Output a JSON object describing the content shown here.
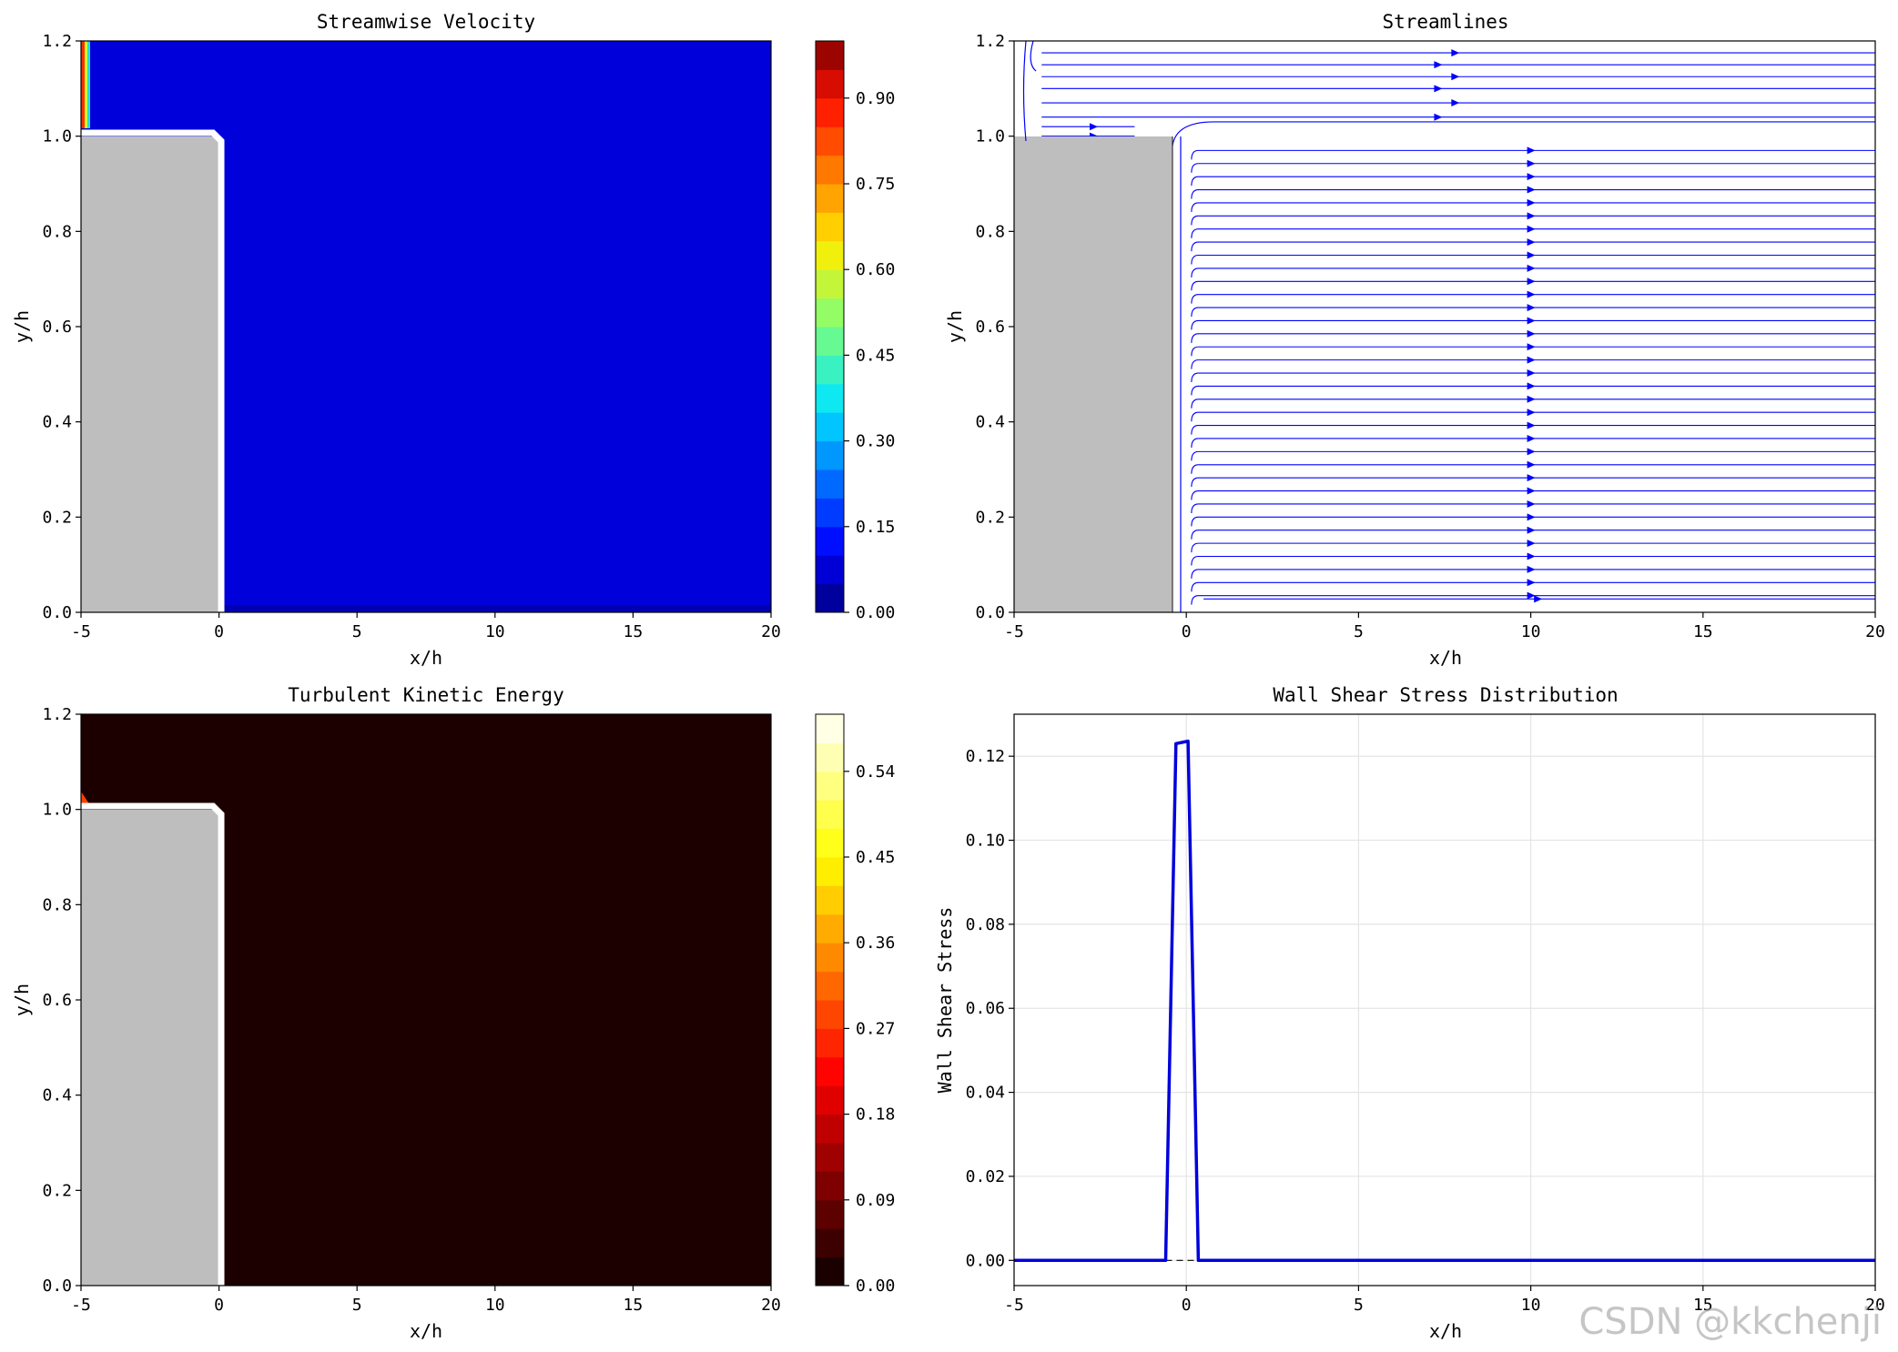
{
  "watermark": "CSDN @kkchenji",
  "chart_data": [
    {
      "type": "heatmap",
      "title": "Streamwise Velocity",
      "xlabel": "x/h",
      "ylabel": "y/h",
      "xlim": [
        -5,
        20
      ],
      "ylim": [
        0,
        1.2
      ],
      "xticks": [
        "-5",
        "0",
        "5",
        "10",
        "15",
        "20"
      ],
      "yticks": [
        "0.0",
        "0.2",
        "0.4",
        "0.6",
        "0.8",
        "1.0",
        "1.2"
      ],
      "colormap": "jet",
      "colorbar_ticks": [
        "0.00",
        "0.15",
        "0.30",
        "0.45",
        "0.60",
        "0.75",
        "0.90"
      ],
      "colorbar_levels": [
        0.0,
        1.0
      ],
      "colorbar_tick_values": [
        0.0,
        0.15,
        0.3,
        0.45,
        0.6,
        0.75,
        0.9
      ],
      "step": {
        "x_range": [
          -5,
          0
        ],
        "y_range": [
          0,
          1.0
        ]
      },
      "field_note_value": 0.0
    },
    {
      "type": "line",
      "title": "Streamlines",
      "xlabel": "x/h",
      "ylabel": "y/h",
      "xlim": [
        -5,
        20
      ],
      "ylim": [
        0,
        1.2
      ],
      "xticks": [
        "-5",
        "0",
        "5",
        "10",
        "15",
        "20"
      ],
      "yticks": [
        "0.0",
        "0.2",
        "0.4",
        "0.6",
        "0.8",
        "1.0",
        "1.2"
      ],
      "line_color": "#0000ff",
      "step": {
        "x_range": [
          -5,
          -0.4
        ],
        "y_range": [
          0,
          1.0
        ]
      }
    },
    {
      "type": "heatmap",
      "title": "Turbulent Kinetic Energy",
      "xlabel": "x/h",
      "ylabel": "y/h",
      "xlim": [
        -5,
        20
      ],
      "ylim": [
        0,
        1.2
      ],
      "xticks": [
        "-5",
        "0",
        "5",
        "10",
        "15",
        "20"
      ],
      "yticks": [
        "0.0",
        "0.2",
        "0.4",
        "0.6",
        "0.8",
        "1.0",
        "1.2"
      ],
      "colormap": "hot",
      "colorbar_ticks": [
        "0.00",
        "0.09",
        "0.18",
        "0.27",
        "0.36",
        "0.45",
        "0.54"
      ],
      "colorbar_levels": [
        0.0,
        0.6
      ],
      "colorbar_tick_values": [
        0.0,
        0.09,
        0.18,
        0.27,
        0.36,
        0.45,
        0.54
      ],
      "step": {
        "x_range": [
          -5,
          0
        ],
        "y_range": [
          0,
          1.0
        ]
      }
    },
    {
      "type": "line",
      "title": "Wall Shear Stress Distribution",
      "xlabel": "x/h",
      "ylabel": "Wall Shear Stress",
      "xlim": [
        -5,
        20
      ],
      "ylim": [
        -0.006,
        0.13
      ],
      "xticks": [
        "-5",
        "0",
        "5",
        "10",
        "15",
        "20"
      ],
      "yticks": [
        "0.00",
        "0.02",
        "0.04",
        "0.06",
        "0.08",
        "0.10",
        "0.12"
      ],
      "grid": true,
      "zero_line": true,
      "series": [
        {
          "color": "#0000dd",
          "x": [
            -5,
            -0.6,
            -0.3,
            0.0,
            0.05,
            0.35,
            0.6,
            20
          ],
          "y": [
            0.0,
            0.0,
            0.123,
            0.1235,
            0.1236,
            0.0,
            0.0,
            0.0
          ]
        }
      ]
    }
  ]
}
